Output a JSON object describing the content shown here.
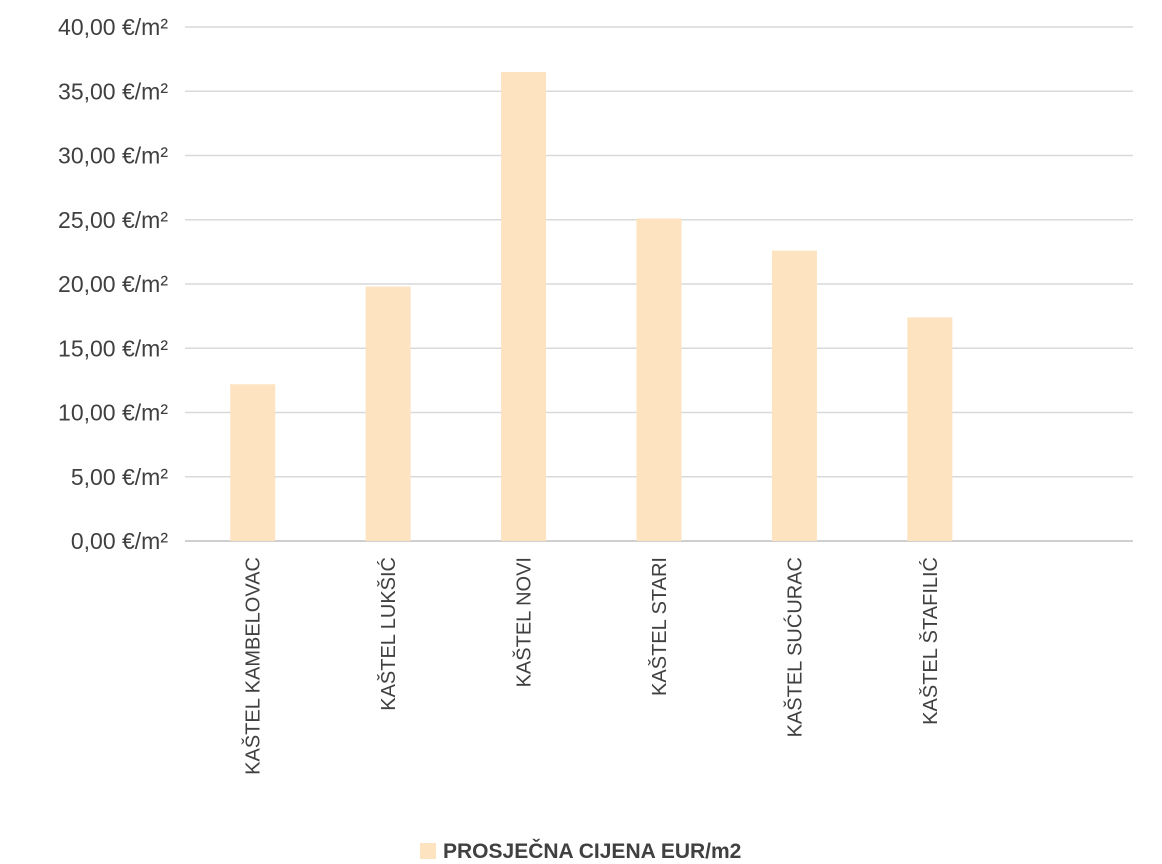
{
  "chart_data": {
    "type": "bar",
    "categories": [
      "KAŠTEL KAMBELOVAC",
      "KAŠTEL LUKŠIĆ",
      "KAŠTEL NOVI",
      "KAŠTEL STARI",
      "KAŠTEL SUĆURAC",
      "KAŠTEL ŠTAFILIĆ"
    ],
    "series": [
      {
        "name": "PROSJEČNA CIJENA EUR/m2",
        "values": [
          12.2,
          19.8,
          36.5,
          25.1,
          22.6,
          17.4
        ],
        "color": "#fde3c0"
      }
    ],
    "ylim": [
      0,
      40
    ],
    "y_ticks": [
      "0,00 €/m²",
      "5,00 €/m²",
      "10,00 €/m²",
      "15,00 €/m²",
      "20,00 €/m²",
      "25,00 €/m²",
      "30,00 €/m²",
      "35,00 €/m²",
      "40,00 €/m²"
    ],
    "xlabel": "",
    "ylabel": "",
    "grid": true,
    "legend_position": "bottom",
    "colors": {
      "bar": "#fde3c0",
      "grid": "#d9d9d9",
      "text": "#404040"
    }
  }
}
